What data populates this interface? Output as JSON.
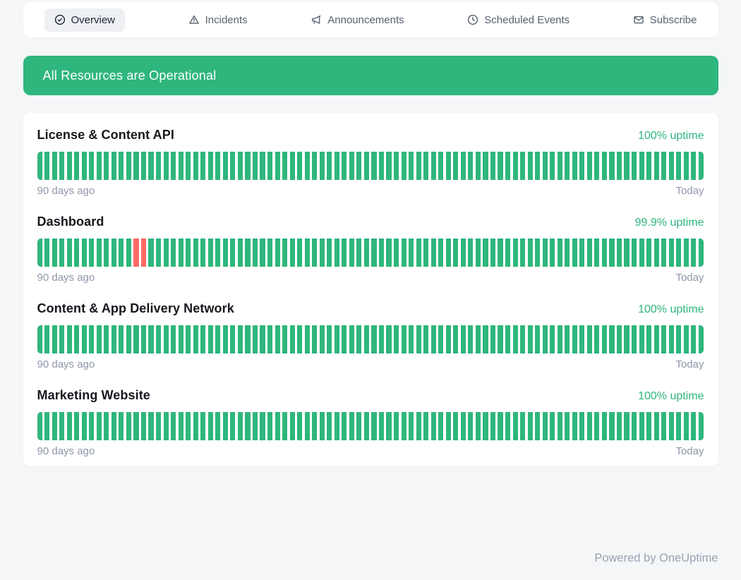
{
  "nav": {
    "tabs": [
      {
        "label": "Overview",
        "icon": "check-circle",
        "active": true
      },
      {
        "label": "Incidents",
        "icon": "alert-triangle",
        "active": false
      },
      {
        "label": "Announcements",
        "icon": "megaphone",
        "active": false
      },
      {
        "label": "Scheduled Events",
        "icon": "clock",
        "active": false
      },
      {
        "label": "Subscribe",
        "icon": "envelope",
        "active": false
      }
    ]
  },
  "banner": {
    "message": "All Resources are Operational"
  },
  "chart_data": {
    "type": "bar",
    "description": "90-day uptime history per resource; one bar per day, operational (green) or outage (red)",
    "monitors": [
      {
        "name": "License & Content API",
        "uptime_percent": "100%",
        "days": 90,
        "down_day_indexes": []
      },
      {
        "name": "Dashboard",
        "uptime_percent": "99.9%",
        "days": 90,
        "down_day_indexes": [
          13,
          14
        ]
      },
      {
        "name": "Content & App Delivery Network",
        "uptime_percent": "100%",
        "days": 90,
        "down_day_indexes": []
      },
      {
        "name": "Marketing Website",
        "uptime_percent": "100%",
        "days": 90,
        "down_day_indexes": []
      }
    ]
  },
  "monitors": [
    {
      "name": "License & Content API",
      "uptime_label": "100% uptime",
      "days": 90,
      "down_day_indexes": [],
      "range_start_label": "90 days ago",
      "range_end_label": "Today"
    },
    {
      "name": "Dashboard",
      "uptime_label": "99.9% uptime",
      "days": 90,
      "down_day_indexes": [
        13,
        14
      ],
      "range_start_label": "90 days ago",
      "range_end_label": "Today"
    },
    {
      "name": "Content & App Delivery Network",
      "uptime_label": "100% uptime",
      "days": 90,
      "down_day_indexes": [],
      "range_start_label": "90 days ago",
      "range_end_label": "Today"
    },
    {
      "name": "Marketing Website",
      "uptime_label": "100% uptime",
      "days": 90,
      "down_day_indexes": [],
      "range_start_label": "90 days ago",
      "range_end_label": "Today"
    }
  ],
  "footer": {
    "text": "Powered by OneUptime"
  },
  "colors": {
    "operational": "#2eb67d",
    "outage": "#fd6a66"
  }
}
